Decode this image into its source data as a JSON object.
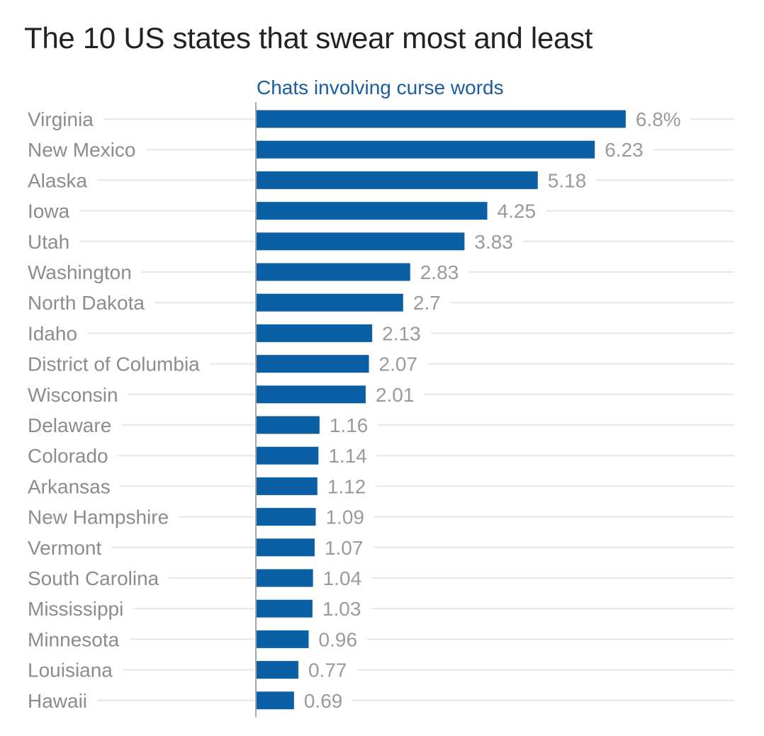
{
  "chart_data": {
    "type": "bar",
    "orientation": "horizontal",
    "title": "The 10 US states that swear most and least",
    "series_label": "Chats involving curse words",
    "categories": [
      "Virginia",
      "New Mexico",
      "Alaska",
      "Iowa",
      "Utah",
      "Washington",
      "North Dakota",
      "Idaho",
      "District of Columbia",
      "Wisconsin",
      "Delaware",
      "Colorado",
      "Arkansas",
      "New Hampshire",
      "Vermont",
      "South Carolina",
      "Mississippi",
      "Minnesota",
      "Louisiana",
      "Hawaii"
    ],
    "values": [
      6.8,
      6.23,
      5.18,
      4.25,
      3.83,
      2.83,
      2.7,
      2.13,
      2.07,
      2.01,
      1.16,
      1.14,
      1.12,
      1.09,
      1.07,
      1.04,
      1.03,
      0.96,
      0.77,
      0.69
    ],
    "value_labels": [
      "6.8%",
      "6.23",
      "5.18",
      "4.25",
      "3.83",
      "2.83",
      "2.7",
      "2.13",
      "2.07",
      "2.01",
      "1.16",
      "1.14",
      "1.12",
      "1.09",
      "1.07",
      "1.04",
      "1.03",
      "0.96",
      "0.77",
      "0.69"
    ],
    "bar_color": "#0b5fa5",
    "label_color": "#1a5d9e",
    "grid": true,
    "legend": "none"
  }
}
